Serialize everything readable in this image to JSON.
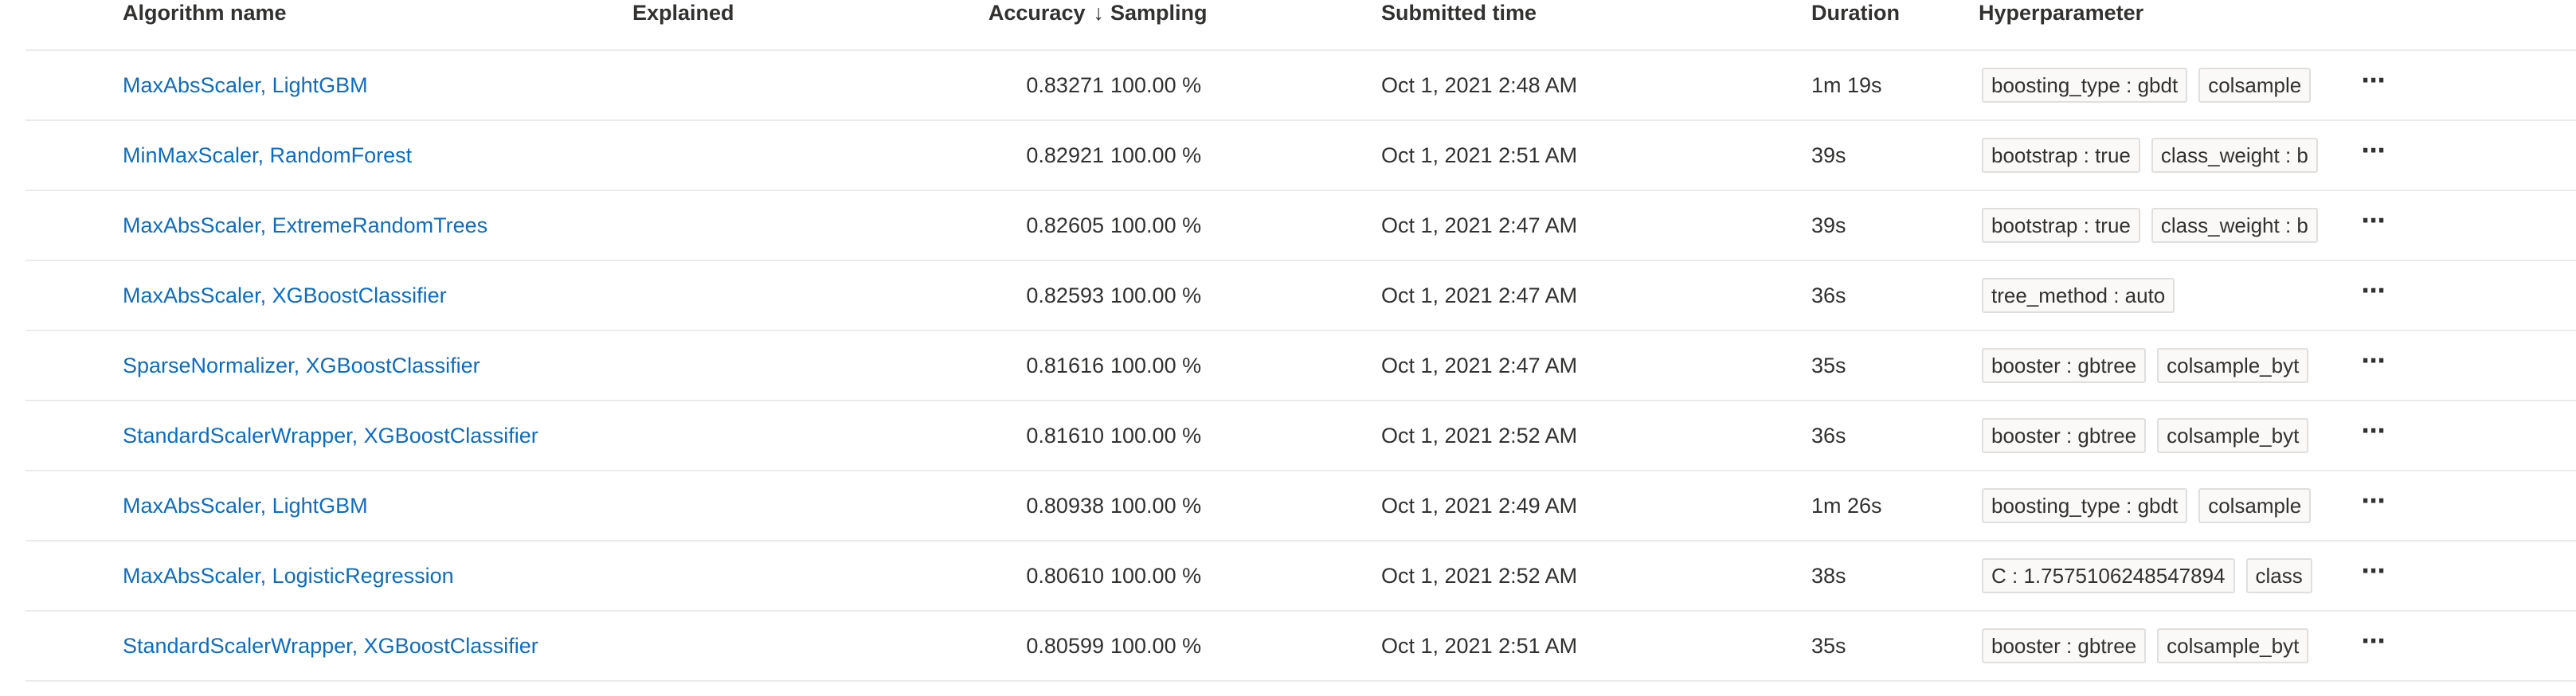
{
  "columns": {
    "algorithm": "Algorithm name",
    "explained": "Explained",
    "accuracy": "Accuracy",
    "accuracy_sort_glyph": "↓",
    "sampling": "Sampling",
    "submitted": "Submitted time",
    "duration": "Duration",
    "hyperparameter": "Hyperparameter"
  },
  "more_glyph": "⋯",
  "rows": [
    {
      "name": "MaxAbsScaler, LightGBM",
      "explained": "",
      "accuracy": "0.83271",
      "sampling": "100.00 %",
      "submitted": "Oct 1, 2021 2:48 AM",
      "duration": "1m 19s",
      "hyperparameters": [
        "boosting_type : gbdt",
        "colsample"
      ]
    },
    {
      "name": "MinMaxScaler, RandomForest",
      "explained": "",
      "accuracy": "0.82921",
      "sampling": "100.00 %",
      "submitted": "Oct 1, 2021 2:51 AM",
      "duration": "39s",
      "hyperparameters": [
        "bootstrap : true",
        "class_weight : b"
      ]
    },
    {
      "name": "MaxAbsScaler, ExtremeRandomTrees",
      "explained": "",
      "accuracy": "0.82605",
      "sampling": "100.00 %",
      "submitted": "Oct 1, 2021 2:47 AM",
      "duration": "39s",
      "hyperparameters": [
        "bootstrap : true",
        "class_weight : b"
      ]
    },
    {
      "name": "MaxAbsScaler, XGBoostClassifier",
      "explained": "",
      "accuracy": "0.82593",
      "sampling": "100.00 %",
      "submitted": "Oct 1, 2021 2:47 AM",
      "duration": "36s",
      "hyperparameters": [
        "tree_method : auto"
      ]
    },
    {
      "name": "SparseNormalizer, XGBoostClassifier",
      "explained": "",
      "accuracy": "0.81616",
      "sampling": "100.00 %",
      "submitted": "Oct 1, 2021 2:47 AM",
      "duration": "35s",
      "hyperparameters": [
        "booster : gbtree",
        "colsample_byt"
      ]
    },
    {
      "name": "StandardScalerWrapper, XGBoostClassifier",
      "explained": "",
      "accuracy": "0.81610",
      "sampling": "100.00 %",
      "submitted": "Oct 1, 2021 2:52 AM",
      "duration": "36s",
      "hyperparameters": [
        "booster : gbtree",
        "colsample_byt"
      ]
    },
    {
      "name": "MaxAbsScaler, LightGBM",
      "explained": "",
      "accuracy": "0.80938",
      "sampling": "100.00 %",
      "submitted": "Oct 1, 2021 2:49 AM",
      "duration": "1m 26s",
      "hyperparameters": [
        "boosting_type : gbdt",
        "colsample"
      ]
    },
    {
      "name": "MaxAbsScaler, LogisticRegression",
      "explained": "",
      "accuracy": "0.80610",
      "sampling": "100.00 %",
      "submitted": "Oct 1, 2021 2:52 AM",
      "duration": "38s",
      "hyperparameters": [
        "C : 1.7575106248547894",
        "class"
      ]
    },
    {
      "name": "StandardScalerWrapper, XGBoostClassifier",
      "explained": "",
      "accuracy": "0.80599",
      "sampling": "100.00 %",
      "submitted": "Oct 1, 2021 2:51 AM",
      "duration": "35s",
      "hyperparameters": [
        "booster : gbtree",
        "colsample_byt"
      ]
    }
  ]
}
